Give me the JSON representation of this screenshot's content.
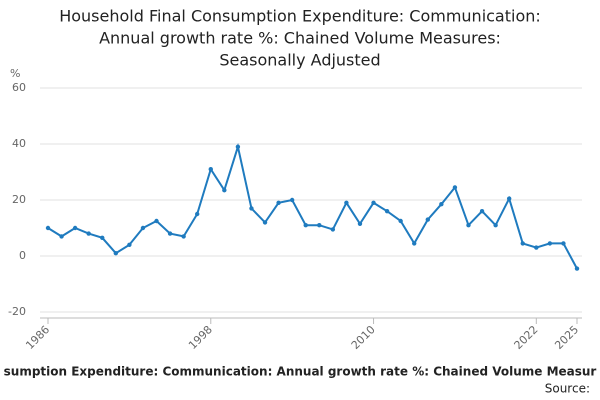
{
  "chart_data": {
    "type": "line",
    "title": [
      "Household Final Consumption Expenditure: Communication:",
      "Annual growth rate %: Chained Volume Measures:",
      "Seasonally Adjusted"
    ],
    "y_label": "%",
    "x": [
      1986,
      1987,
      1988,
      1989,
      1990,
      1991,
      1992,
      1993,
      1994,
      1995,
      1996,
      1997,
      1998,
      1999,
      2000,
      2001,
      2002,
      2003,
      2004,
      2005,
      2006,
      2007,
      2008,
      2009,
      2010,
      2011,
      2012,
      2013,
      2014,
      2015,
      2016,
      2017,
      2018,
      2019,
      2020,
      2021,
      2022,
      2023,
      2024,
      2025
    ],
    "series": [
      {
        "name": "Annual growth rate %",
        "color": "#1f7bbf",
        "values": [
          10,
          7,
          10,
          8,
          6.5,
          1,
          4,
          10,
          12.5,
          8,
          7,
          15,
          31,
          23.5,
          39,
          17,
          12,
          19,
          20,
          11,
          11,
          9.5,
          19,
          11.5,
          19,
          16,
          12.5,
          4.5,
          13,
          18.5,
          24.5,
          11,
          16,
          11,
          20.5,
          4.5,
          3,
          4.5,
          4.5,
          -4.5
        ]
      }
    ],
    "xlim": [
      1986,
      2025
    ],
    "xticks": [
      1986,
      1998,
      2010,
      2022,
      2025
    ],
    "ylim": [
      -20,
      60
    ],
    "yticks": [
      -20,
      0,
      20,
      40,
      60
    ],
    "grid": true,
    "footer": "sumption Expenditure: Communication: Annual growth rate %: Chained Volume Measur",
    "source": "Source:"
  }
}
